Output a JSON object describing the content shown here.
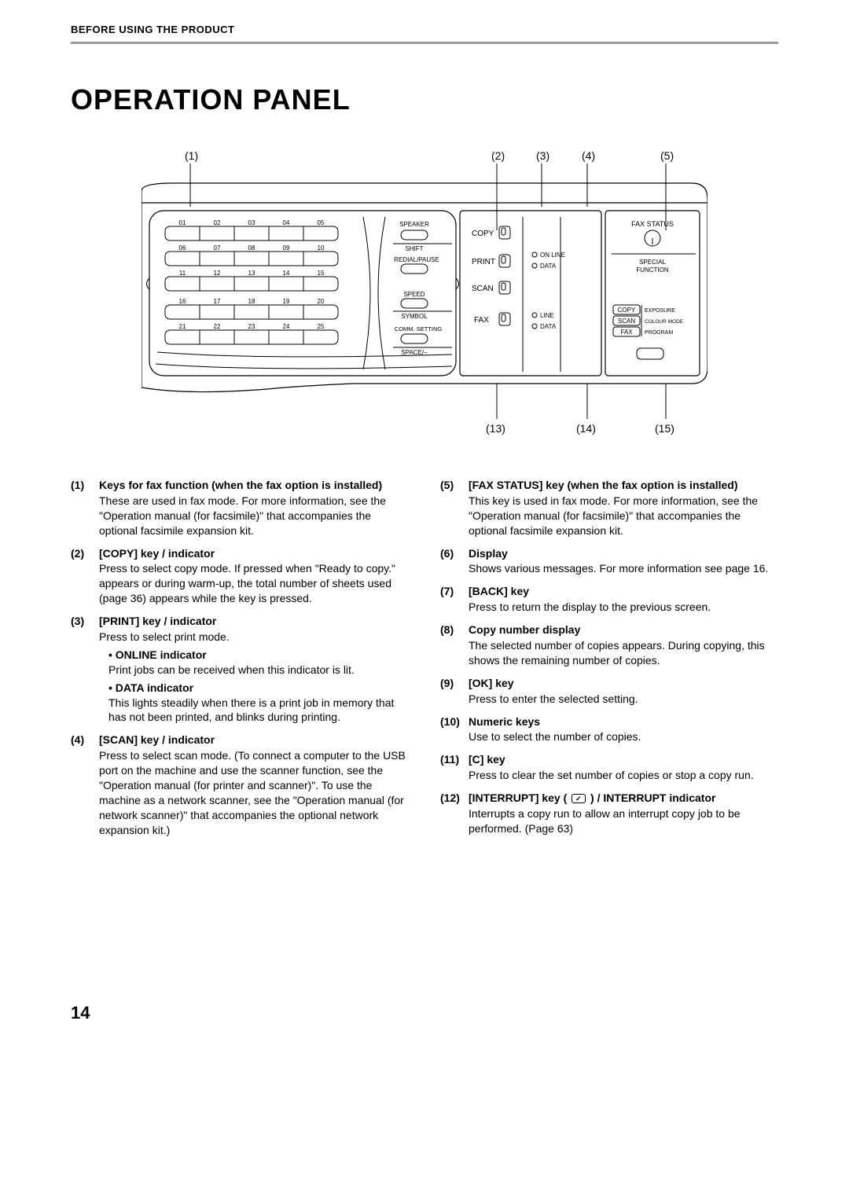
{
  "header": {
    "section": "BEFORE USING THE PRODUCT"
  },
  "title": "OPERATION PANEL",
  "page_number": "14",
  "diagram": {
    "top_callouts": [
      "(1)",
      "(2)",
      "(3)",
      "(4)",
      "(5)"
    ],
    "bottom_callouts": [
      "(13)",
      "(14)",
      "(15)"
    ],
    "keypad_numbers": [
      "01",
      "02",
      "03",
      "04",
      "05",
      "06",
      "07",
      "08",
      "09",
      "10",
      "11",
      "12",
      "13",
      "14",
      "15",
      "16",
      "17",
      "18",
      "19",
      "20",
      "21",
      "22",
      "23",
      "24",
      "25"
    ],
    "mid_labels": [
      "SPEAKER",
      "SHIFT",
      "REDIAL/PAUSE",
      "SPEED",
      "SYMBOL",
      "COMM. SETTING",
      "SPACE/–"
    ],
    "mode_labels": [
      "COPY",
      "PRINT",
      "SCAN",
      "FAX"
    ],
    "status_labels_top": [
      "ON LINE",
      "DATA"
    ],
    "status_labels_bottom": [
      "LINE",
      "DATA"
    ],
    "right_top": {
      "title": "FAX STATUS",
      "sub": "SPECIAL\nFUNCTION"
    },
    "right_table": [
      {
        "left": "COPY",
        "right": "EXPOSURE"
      },
      {
        "left": "SCAN",
        "right": "COLOUR MODE"
      },
      {
        "left": "FAX",
        "right": "PROGRAM"
      }
    ],
    "colors": {
      "stroke": "#000000",
      "light": "#bfbfbf",
      "bg": "#ffffff"
    }
  },
  "left_items": [
    {
      "num": "(1)",
      "title": "Keys for fax function (when the fax option is installed)",
      "desc": "These are used in fax mode. For more information, see the \"Operation manual (for facsimile)\" that accompanies the optional facsimile expansion kit."
    },
    {
      "num": "(2)",
      "title": "[COPY] key / indicator",
      "desc": "Press to select copy mode. If pressed when \"Ready to copy.\" appears or during warm-up, the total number of sheets used (page 36) appears while the key is pressed."
    },
    {
      "num": "(3)",
      "title": "[PRINT] key / indicator",
      "desc": "Press to select print mode.",
      "subs": [
        {
          "title": "ONLINE indicator",
          "desc": "Print jobs can be received when this indicator is lit."
        },
        {
          "title": "DATA indicator",
          "desc": "This lights steadily when there is a print job in memory that has not been printed, and blinks during printing."
        }
      ]
    },
    {
      "num": "(4)",
      "title": "[SCAN] key / indicator",
      "desc": "Press to select scan mode. (To connect a computer to the USB port on the machine and use the scanner function, see the \"Operation manual (for printer and scanner)\". To use the machine as a network scanner, see the \"Operation manual (for network scanner)\" that accompanies the optional network expansion kit.)"
    }
  ],
  "right_items": [
    {
      "num": "(5)",
      "title": "[FAX STATUS] key (when the fax option is installed)",
      "desc": "This key is used in fax mode. For more information, see the \"Operation manual (for facsimile)\" that accompanies the optional facsimile expansion kit."
    },
    {
      "num": "(6)",
      "title": "Display",
      "desc": "Shows various messages. For more information see page 16."
    },
    {
      "num": "(7)",
      "title": "[BACK] key",
      "desc": "Press to return the display to the previous screen."
    },
    {
      "num": "(8)",
      "title": "Copy number display",
      "desc": "The selected number of copies appears. During copying, this shows the remaining number of copies."
    },
    {
      "num": "(9)",
      "title": "[OK] key",
      "desc": "Press to enter the selected setting."
    },
    {
      "num": "(10)",
      "title": "Numeric keys",
      "desc": "Use to select the number of copies."
    },
    {
      "num": "(11)",
      "title": "[C] key",
      "desc": "Press to clear the set number of copies or stop a copy run."
    },
    {
      "num": "(12)",
      "title_html": true,
      "title": "[INTERRUPT] key ( ICON ) / INTERRUPT indicator",
      "desc": "Interrupts a copy run to allow an interrupt copy job to be performed. (Page 63)"
    }
  ]
}
